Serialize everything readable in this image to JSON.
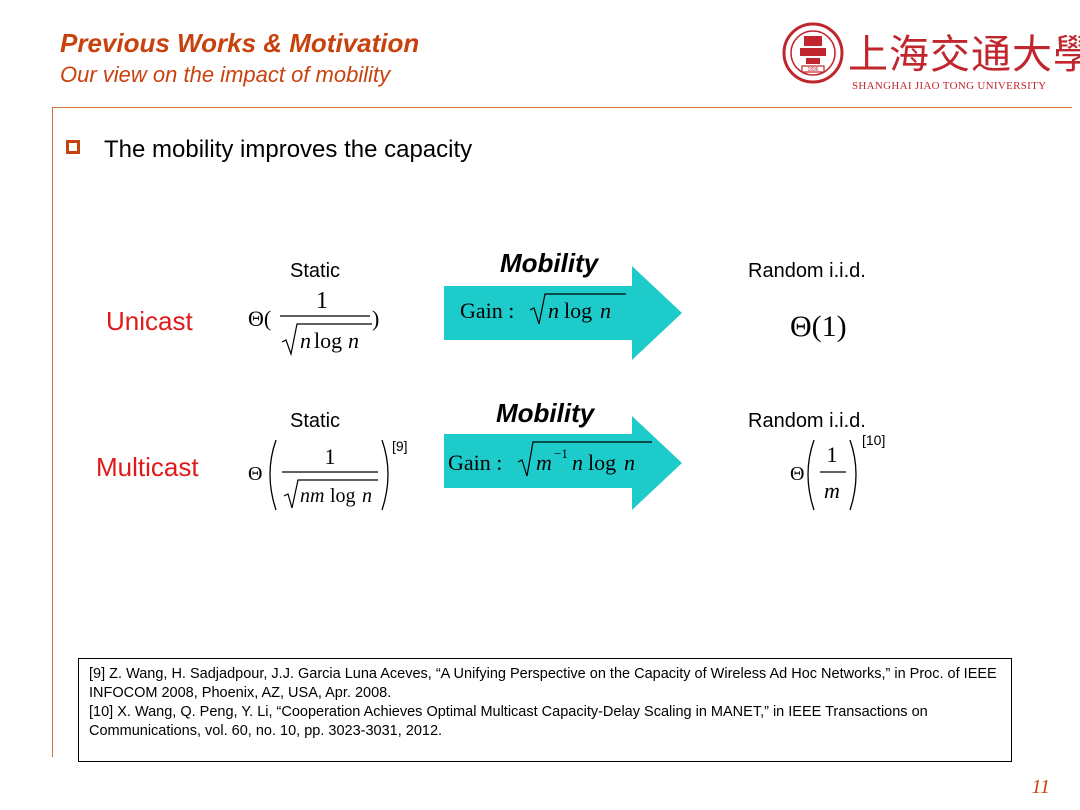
{
  "header": {
    "title": "Previous Works & Motivation",
    "subtitle": "Our view on the impact of mobility",
    "logo_cn": "上海交通大學",
    "logo_en": "SHANGHAI JIAO TONG UNIVERSITY",
    "logo_year": "1896"
  },
  "bullet": "The mobility improves the capacity",
  "unicast": {
    "label": "Unicast",
    "static_label": "Static",
    "mobility_label": "Mobility",
    "random_label": "Random i.i.d."
  },
  "multicast": {
    "label": "Multicast",
    "static_label": "Static",
    "mobility_label": "Mobility",
    "random_label": "Random i.i.d.",
    "static_ref": "[9]",
    "random_ref": "[10]"
  },
  "references": [
    "[9] Z. Wang, H. Sadjadpour, J.J. Garcia Luna Aceves, “A Unifying Perspective on the Capacity of Wireless Ad Hoc Networks,” in Proc. of IEEE INFOCOM 2008, Phoenix, AZ, USA, Apr. 2008.",
    "[10] X. Wang, Q. Peng, Y. Li, “Cooperation Achieves Optimal Multicast Capacity-Delay Scaling in MANET,” in IEEE Transactions on Communications, vol. 60, no. 10, pp. 3023-3031, 2012."
  ],
  "page_number": "11",
  "colors": {
    "accent": "#c8420e",
    "label_red": "#e01a1a",
    "arrow": "#1ecbcb",
    "logo_red": "#c0262d"
  }
}
